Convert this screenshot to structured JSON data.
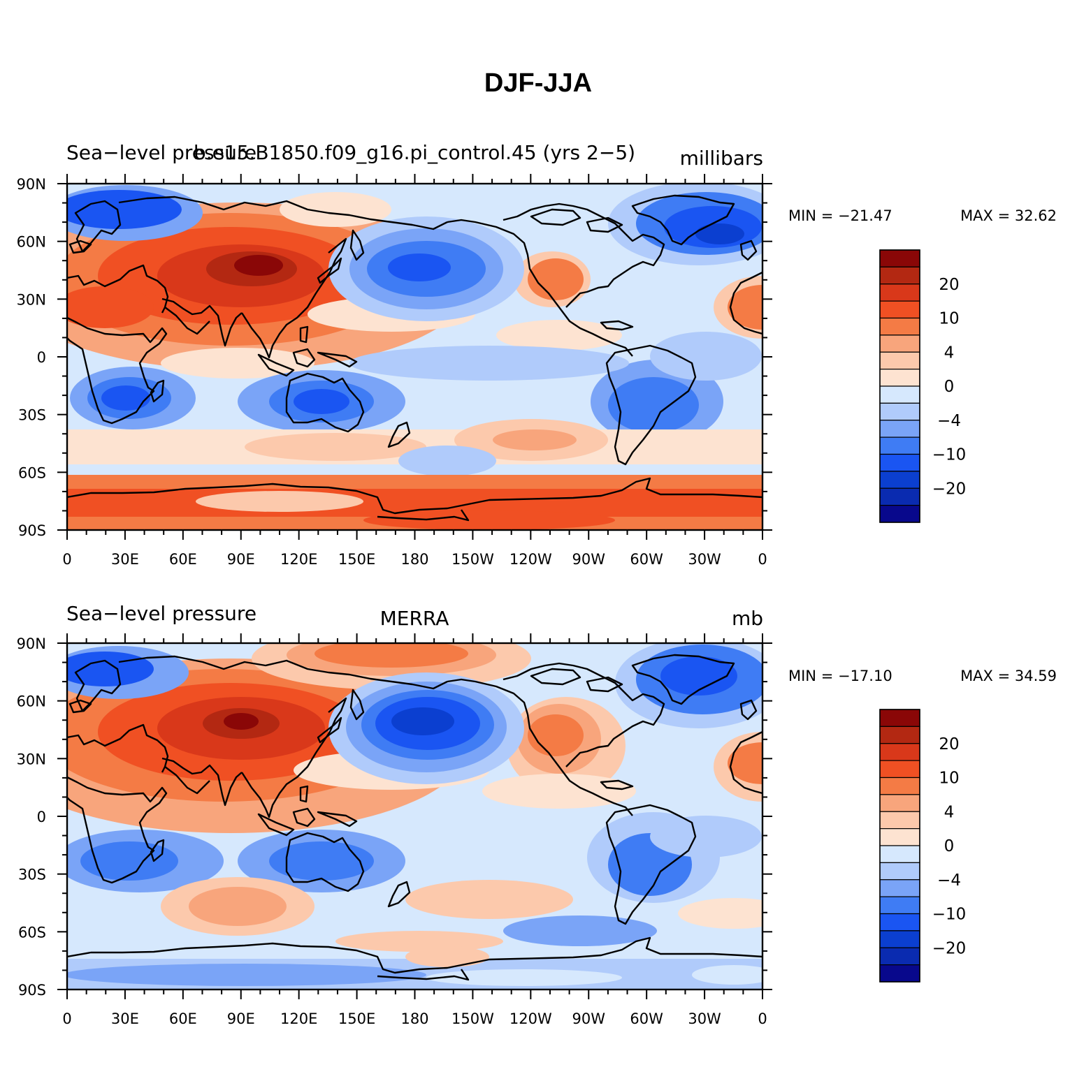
{
  "figure": {
    "title": "DJF-JJA"
  },
  "palette": [
    "#08088c",
    "#0a2bb0",
    "#0b3fd0",
    "#1a55f2",
    "#3f7cf4",
    "#7aa4f7",
    "#b0cbfb",
    "#d6e8fd",
    "#fde3d1",
    "#fcc9ac",
    "#f8a57c",
    "#f47b45",
    "#f05023",
    "#d9381a",
    "#b32812",
    "#8a0707"
  ],
  "colorbar_labels": [
    "20",
    "10",
    "4",
    "0",
    "−4",
    "−10",
    "−20"
  ],
  "lon_labels": [
    "0",
    "30E",
    "60E",
    "90E",
    "120E",
    "150E",
    "180",
    "150W",
    "120W",
    "90W",
    "60W",
    "30W",
    "0"
  ],
  "lat_labels": [
    "90N",
    "60N",
    "30N",
    "0",
    "30S",
    "60S",
    "90S"
  ],
  "panels": [
    {
      "left": "Sea−level pressure",
      "center": "b.e15.B1850.f09_g16.pi_control.45 (yrs 2−5)",
      "right": "millibars",
      "min_label": "MIN = −21.47",
      "max_label": "MAX =   32.62",
      "min": -21.47,
      "max": 32.62
    },
    {
      "left": "Sea−level pressure",
      "center": "MERRA",
      "right": "mb",
      "min_label": "MIN = −17.10",
      "max_label": "MAX =   34.59",
      "min": -17.1,
      "max": 34.59
    }
  ]
}
